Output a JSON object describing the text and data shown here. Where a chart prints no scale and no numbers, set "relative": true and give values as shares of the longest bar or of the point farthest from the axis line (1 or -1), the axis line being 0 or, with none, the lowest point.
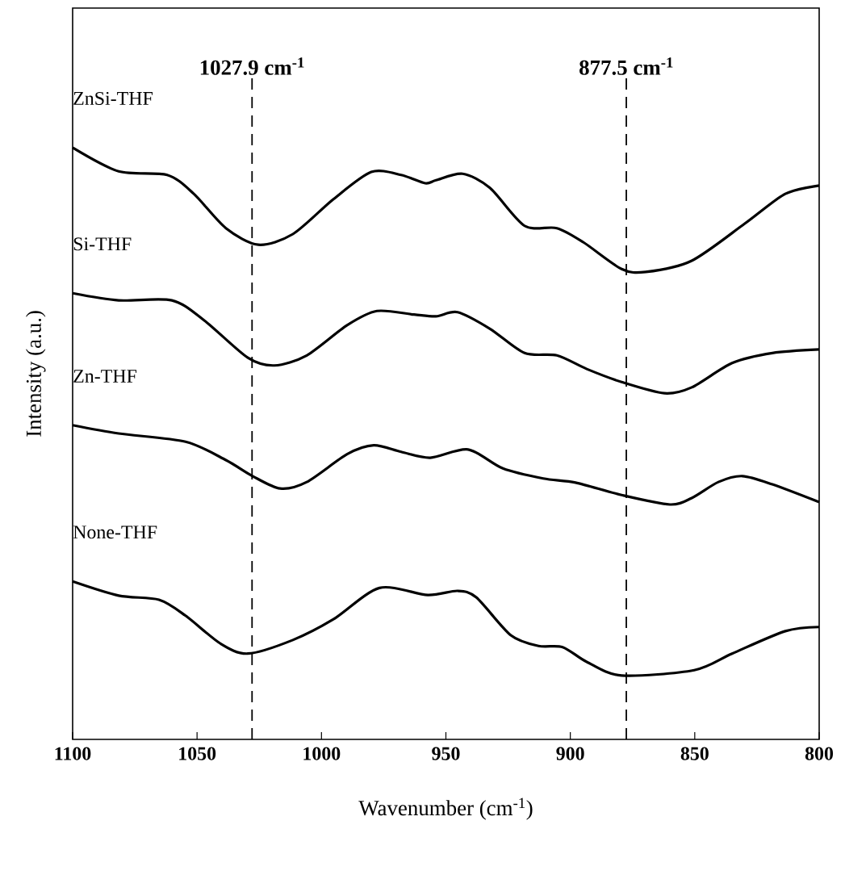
{
  "chart_data": {
    "type": "line",
    "xlabel": "Wavenumber (cm$^{-1}$)",
    "ylabel": "Intensity (a.u.)",
    "relative": true,
    "tick_labels": "x",
    "xlim": [
      1100,
      800
    ],
    "xticks": [
      1100,
      1050,
      1000,
      950,
      900,
      850,
      800
    ],
    "ref_lines": [
      {
        "axis": "x",
        "value": 1027.9,
        "label": "1027.9 cm$^{-1}$",
        "line_style": "dashed",
        "color": "#000000"
      },
      {
        "axis": "x",
        "value": 877.5,
        "label": "877.5 cm$^{-1}$",
        "line_style": "dashed",
        "color": "#000000"
      }
    ],
    "series": [
      {
        "name": "ZnSi-THF",
        "color": "#000000",
        "x": [
          1100,
          1081.5,
          1062,
          1051.3,
          1038.4,
          1025.4,
          1011.5,
          995.2,
          980,
          968,
          958.3,
          954,
          943.3,
          932.3,
          918.4,
          905.4,
          894.7,
          879.4,
          869.7,
          851.2,
          829.8,
          813.6,
          800
        ],
        "values": [
          1,
          0.96,
          0.954,
          0.922,
          0.864,
          0.836,
          0.854,
          0.913,
          0.959,
          0.954,
          0.94,
          0.945,
          0.956,
          0.932,
          0.868,
          0.864,
          0.84,
          0.795,
          0.79,
          0.809,
          0.872,
          0.922,
          0.936
        ]
      },
      {
        "name": "Si-THF",
        "color": "#000000",
        "x": [
          1100,
          1081.5,
          1060.1,
          1047.1,
          1029.6,
          1018.9,
          1005.9,
          989.7,
          977.7,
          962.8,
          954,
          945.3,
          932.3,
          918.4,
          905.4,
          893.4,
          879.4,
          862.2,
          851.2,
          835,
          818.8,
          800
        ],
        "values": [
          0.754,
          0.742,
          0.742,
          0.708,
          0.645,
          0.632,
          0.649,
          0.7,
          0.724,
          0.718,
          0.715,
          0.722,
          0.694,
          0.653,
          0.649,
          0.626,
          0.604,
          0.585,
          0.595,
          0.636,
          0.653,
          0.659
        ]
      },
      {
        "name": "Zn-THF",
        "color": "#000000",
        "x": [
          1100,
          1081.5,
          1054.6,
          1038.4,
          1027.7,
          1016.6,
          1005.9,
          989.7,
          979,
          968,
          956.3,
          941.1,
          927.1,
          910.9,
          897.9,
          879.4,
          860,
          851.2,
          840.5,
          830.8,
          818.8,
          800
        ],
        "values": [
          0.531,
          0.517,
          0.503,
          0.472,
          0.445,
          0.424,
          0.435,
          0.482,
          0.497,
          0.486,
          0.476,
          0.49,
          0.458,
          0.441,
          0.434,
          0.413,
          0.397,
          0.408,
          0.435,
          0.445,
          0.431,
          0.401
        ]
      },
      {
        "name": "None-THF",
        "color": "#000000",
        "x": [
          1100,
          1081.5,
          1065.3,
          1054.6,
          1040.6,
          1029.6,
          1011.5,
          995.2,
          976.7,
          957.3,
          945.3,
          937.8,
          923.9,
          912.8,
          903.1,
          893.4,
          879.4,
          850.2,
          835,
          813.6,
          800
        ],
        "values": [
          0.267,
          0.243,
          0.236,
          0.209,
          0.162,
          0.145,
          0.168,
          0.203,
          0.256,
          0.244,
          0.251,
          0.24,
          0.176,
          0.158,
          0.156,
          0.131,
          0.108,
          0.117,
          0.145,
          0.183,
          0.19
        ]
      }
    ]
  }
}
